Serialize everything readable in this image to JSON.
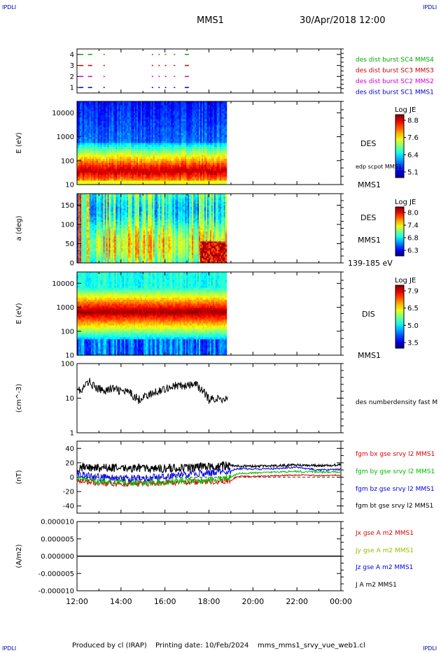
{
  "header": {
    "corner_label": "IPDLI",
    "spacecraft": "MMS1",
    "date_time": "30/Apr/2018 12:00"
  },
  "footer": {
    "produced_by": "Produced by cl (IRAP)",
    "printing_date": "Printing date: 10/Feb/2024",
    "file_name": "mms_mms1_srvy_vue_web1.cl"
  },
  "time_axis": {
    "ticks": [
      "12:00",
      "14:00",
      "16:00",
      "18:00",
      "20:00",
      "22:00",
      "00:00"
    ],
    "range_hours": [
      12,
      24
    ]
  },
  "chart_data": [
    {
      "type": "scatter",
      "id": "burst",
      "y_ticks": [
        "4",
        "3",
        "2",
        "1"
      ],
      "ylim": [
        0.5,
        4.5
      ],
      "series": [
        {
          "name": "des dist burst SC1 MMS1",
          "y": 1,
          "color": "#0000cc",
          "x_hours": [
            12.1,
            12.5,
            13.2,
            15.4,
            15.7,
            16.0,
            16.4,
            16.9
          ]
        },
        {
          "name": "des dist burst SC2 MMS2",
          "y": 2,
          "color": "#cc00cc",
          "x_hours": [
            12.1,
            12.5,
            13.2,
            15.4,
            15.7,
            16.0,
            16.4,
            16.9
          ]
        },
        {
          "name": "des dist burst SC3 MMS3",
          "y": 3,
          "color": "#cc0000",
          "x_hours": [
            12.1,
            12.5,
            13.2,
            15.4,
            15.7,
            16.0,
            16.4,
            16.9
          ]
        },
        {
          "name": "des dist burst SC4 MMS4",
          "y": 4,
          "color": "#00aa00",
          "x_hours": [
            12.1,
            12.5,
            13.2,
            15.4,
            15.7,
            16.0,
            16.4,
            16.9
          ]
        }
      ]
    },
    {
      "type": "heatmap",
      "id": "des_energy",
      "ylabel": "E (eV)",
      "y_scale": "log",
      "ylim": [
        10,
        30000
      ],
      "y_ticks": [
        "10000",
        "1000",
        "100",
        "10"
      ],
      "data_end_hour": 18.8,
      "right_labels": [
        "DES",
        "edp scpot MMS1",
        "MMS1"
      ],
      "colorbar": {
        "title": "Log JE",
        "ticks": [
          "8.8",
          "7.6",
          "6.4",
          "5.1"
        ]
      }
    },
    {
      "type": "heatmap",
      "id": "des_pitch",
      "ylabel": "a (deg)",
      "ylim": [
        0,
        180
      ],
      "y_ticks": [
        "150",
        "100",
        "50",
        "0"
      ],
      "data_end_hour": 18.8,
      "right_labels": [
        "DES",
        "MMS1",
        "139-185 eV"
      ],
      "colorbar": {
        "title": "Log JE",
        "ticks": [
          "8.0",
          "7.4",
          "6.8",
          "6.3"
        ]
      }
    },
    {
      "type": "heatmap",
      "id": "dis_energy",
      "ylabel": "E (eV)",
      "y_scale": "log",
      "ylim": [
        10,
        30000
      ],
      "y_ticks": [
        "10000",
        "1000",
        "100",
        "10"
      ],
      "data_end_hour": 18.8,
      "right_labels": [
        "DIS",
        "MMS1"
      ],
      "colorbar": {
        "title": "Log JE",
        "ticks": [
          "7.9",
          "6.5",
          "5.0",
          "3.5"
        ]
      }
    },
    {
      "type": "line",
      "id": "density",
      "ylabel": "(cm^-3)",
      "y_scale": "log",
      "ylim": [
        1,
        100
      ],
      "y_ticks": [
        "100",
        "10",
        "1"
      ],
      "series": [
        {
          "name": "des numberdensity fast M",
          "color": "#000000",
          "x_hours": [
            12.0,
            12.2,
            12.4,
            12.6,
            12.8,
            13.0,
            13.3,
            13.6,
            14.0,
            14.4,
            14.8,
            15.0,
            15.4,
            15.8,
            16.2,
            16.6,
            17.0,
            17.4,
            17.6,
            17.8,
            18.0,
            18.3,
            18.6,
            18.85
          ],
          "y": [
            22,
            14,
            25,
            30,
            20,
            18,
            17,
            19,
            16,
            14,
            9,
            11,
            13,
            17,
            21,
            23,
            22,
            25,
            19,
            14,
            9,
            10,
            9,
            11
          ]
        }
      ]
    },
    {
      "type": "line",
      "id": "fgm",
      "ylabel": "(nT)",
      "ylim": [
        -50,
        50
      ],
      "y_ticks": [
        "40",
        "20",
        "0",
        "-20",
        "-40"
      ],
      "series": [
        {
          "name": "fgm bx gse srvy l2 MMS1",
          "color": "#dd0000",
          "x_hours": [
            12.0,
            13.0,
            14.0,
            15.0,
            16.0,
            17.0,
            18.0,
            19.0,
            19.3,
            20.0,
            21.0,
            22.0,
            23.0,
            24.0
          ],
          "y": [
            -5,
            -8,
            -10,
            -9,
            -8,
            -7,
            -6,
            -5,
            1,
            1,
            2,
            3,
            2,
            3
          ]
        },
        {
          "name": "fgm by gse srvy l2 MMS1",
          "color": "#00bb00",
          "x_hours": [
            12.0,
            13.0,
            14.0,
            15.0,
            16.0,
            17.0,
            18.0,
            19.0,
            19.3,
            20.0,
            21.0,
            22.0,
            23.0,
            24.0
          ],
          "y": [
            -2,
            -5,
            -7,
            -8,
            -6,
            -5,
            -3,
            0,
            5,
            6,
            7,
            8,
            7,
            7
          ]
        },
        {
          "name": "fgm bz gse srvy l2 MMS1",
          "color": "#0000dd",
          "x_hours": [
            12.0,
            13.0,
            14.0,
            15.0,
            16.0,
            17.0,
            18.0,
            19.0,
            19.3,
            20.0,
            21.0,
            22.0,
            23.0,
            24.0
          ],
          "y": [
            5,
            0,
            -2,
            -1,
            1,
            3,
            6,
            9,
            12,
            11,
            12,
            14,
            10,
            11
          ]
        },
        {
          "name": "fgm bt gse srvy l2 MMS1",
          "color": "#000000",
          "x_hours": [
            12.0,
            13.0,
            14.0,
            15.0,
            16.0,
            17.0,
            18.0,
            19.0,
            20.0,
            21.0,
            22.0,
            23.0,
            24.0
          ],
          "y": [
            14,
            13,
            13,
            12,
            12,
            13,
            15,
            16,
            15,
            16,
            17,
            16,
            17
          ]
        }
      ]
    },
    {
      "type": "line",
      "id": "current",
      "ylabel": "(A/m2)",
      "ylim": [
        -1e-05,
        1e-05
      ],
      "y_ticks": [
        "0.000010",
        "0.000005",
        "0.000000",
        "-0.000005",
        "-0.000010"
      ],
      "series": [
        {
          "name": "Jx gse A m2 MMS1",
          "color": "#dd0000",
          "x_hours": [
            12.0,
            24.0
          ],
          "y": [
            0,
            0
          ]
        },
        {
          "name": "Jy gse A m2 MMS1",
          "color": "#99bb00",
          "x_hours": [
            12.0,
            24.0
          ],
          "y": [
            0,
            0
          ]
        },
        {
          "name": "Jz gse A m2 MMS1",
          "color": "#0000dd",
          "x_hours": [
            12.0,
            24.0
          ],
          "y": [
            0,
            0
          ]
        },
        {
          "name": "J A m2 MMS1",
          "color": "#000000",
          "x_hours": [
            12.0,
            24.0
          ],
          "y": [
            0,
            0
          ]
        }
      ]
    }
  ]
}
